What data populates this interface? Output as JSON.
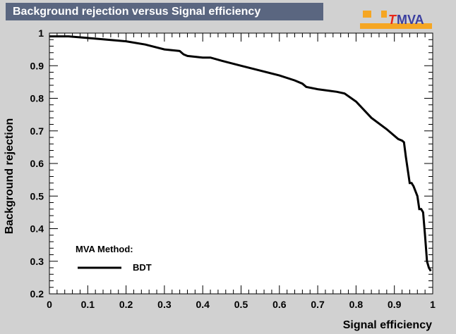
{
  "header": {
    "title": "Background rejection versus Signal efficiency"
  },
  "logo": {
    "text_t": "T",
    "text_mva": "MVA",
    "accent": "#f5a623",
    "t_color": "#e8281a",
    "mva_color": "#3b3fa0"
  },
  "chart_data": {
    "type": "line",
    "title": "Background rejection versus Signal efficiency",
    "xlabel": "Signal efficiency",
    "ylabel": "Background rejection",
    "xlim": [
      0,
      1
    ],
    "ylim": [
      0.2,
      1
    ],
    "xticks": [
      "0",
      "0.1",
      "0.2",
      "0.3",
      "0.4",
      "0.5",
      "0.6",
      "0.7",
      "0.8",
      "0.9",
      "1"
    ],
    "yticks": [
      "0.2",
      "0.3",
      "0.4",
      "0.5",
      "0.6",
      "0.7",
      "0.8",
      "0.9",
      "1"
    ],
    "grid": false,
    "legend": {
      "header": "MVA Method:",
      "entries": [
        "BDT"
      ],
      "placement": "bottom-left"
    },
    "series": [
      {
        "name": "BDT",
        "color": "#000000",
        "x": [
          0,
          0.05,
          0.1,
          0.15,
          0.2,
          0.25,
          0.3,
          0.34,
          0.35,
          0.36,
          0.4,
          0.42,
          0.45,
          0.5,
          0.55,
          0.6,
          0.64,
          0.66,
          0.67,
          0.7,
          0.75,
          0.77,
          0.8,
          0.84,
          0.88,
          0.91,
          0.92,
          0.925,
          0.93,
          0.935,
          0.94,
          0.945,
          0.95,
          0.96,
          0.965,
          0.97,
          0.975,
          0.98,
          0.985,
          0.99,
          0.995
        ],
        "y": [
          0.99,
          0.99,
          0.985,
          0.98,
          0.975,
          0.965,
          0.95,
          0.945,
          0.935,
          0.93,
          0.925,
          0.925,
          0.915,
          0.9,
          0.885,
          0.87,
          0.855,
          0.845,
          0.835,
          0.828,
          0.82,
          0.815,
          0.79,
          0.74,
          0.705,
          0.675,
          0.67,
          0.665,
          0.62,
          0.58,
          0.54,
          0.54,
          0.53,
          0.5,
          0.46,
          0.46,
          0.45,
          0.38,
          0.3,
          0.28,
          0.27
        ]
      }
    ]
  }
}
